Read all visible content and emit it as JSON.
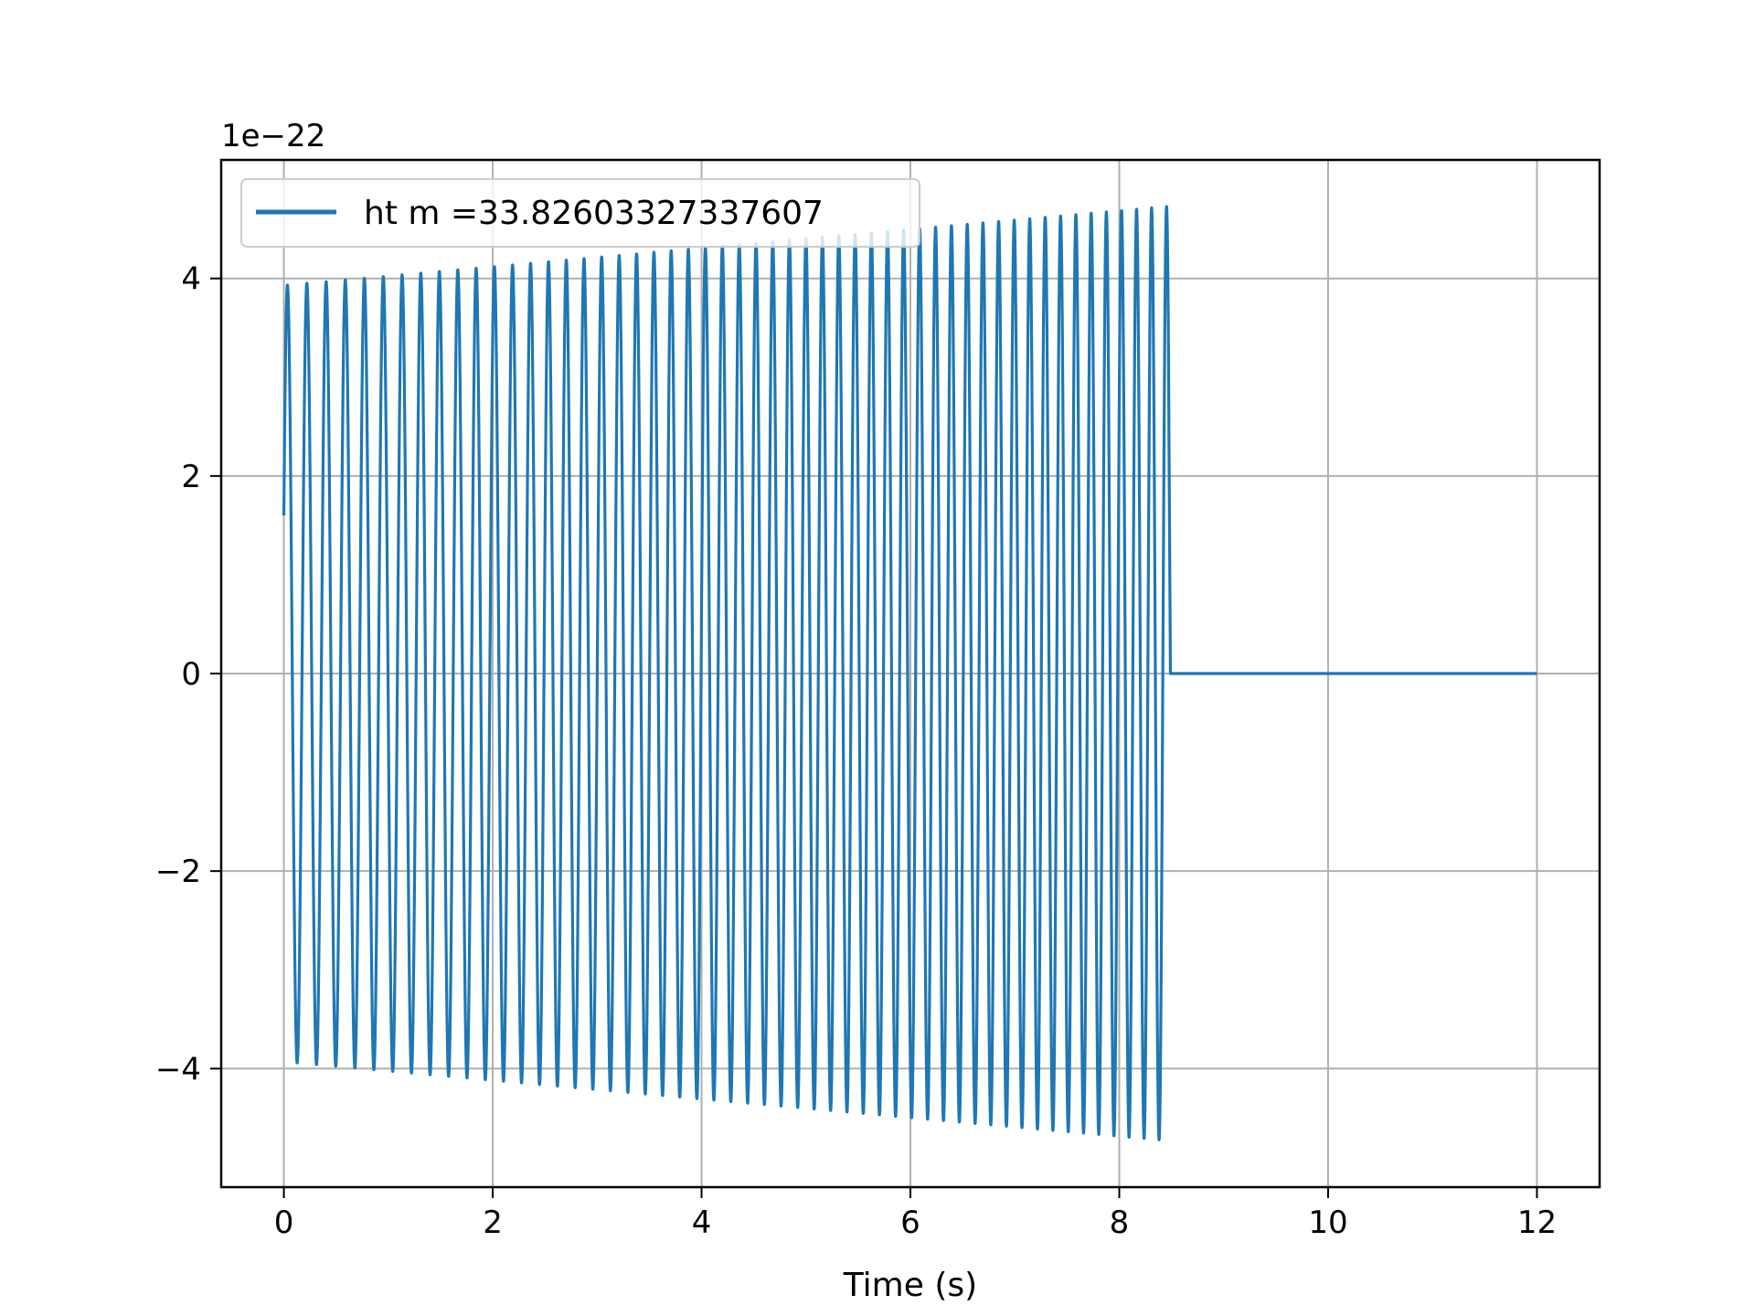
{
  "chart_data": {
    "type": "line",
    "title": "",
    "xlabel": "Time (s)",
    "ylabel": "",
    "y_offset_label": "1e−22",
    "y_scale": 1e-22,
    "xlim": [
      -0.6,
      12.6
    ],
    "ylim": [
      -5.2,
      5.2
    ],
    "x_ticks": [
      0,
      2,
      4,
      6,
      8,
      10,
      12
    ],
    "x_tick_labels": [
      "0",
      "2",
      "4",
      "6",
      "8",
      "10",
      "12"
    ],
    "y_ticks": [
      -4,
      -2,
      0,
      2,
      4
    ],
    "y_tick_labels": [
      "−4",
      "−2",
      "0",
      "2",
      "4"
    ],
    "grid": true,
    "legend_position": "upper-left",
    "series": [
      {
        "name": "ht m =33.82603327337607",
        "color": "#1f77b4",
        "signal_start": 0.0,
        "signal_end": 8.47,
        "x_max": 12.0,
        "initial_value": 1.6,
        "amplitude_start": 3.93,
        "amplitude_end": 4.73,
        "frequency_start": 5.35,
        "frequency_end": 7.0,
        "value_after_end": 0.0
      }
    ]
  }
}
